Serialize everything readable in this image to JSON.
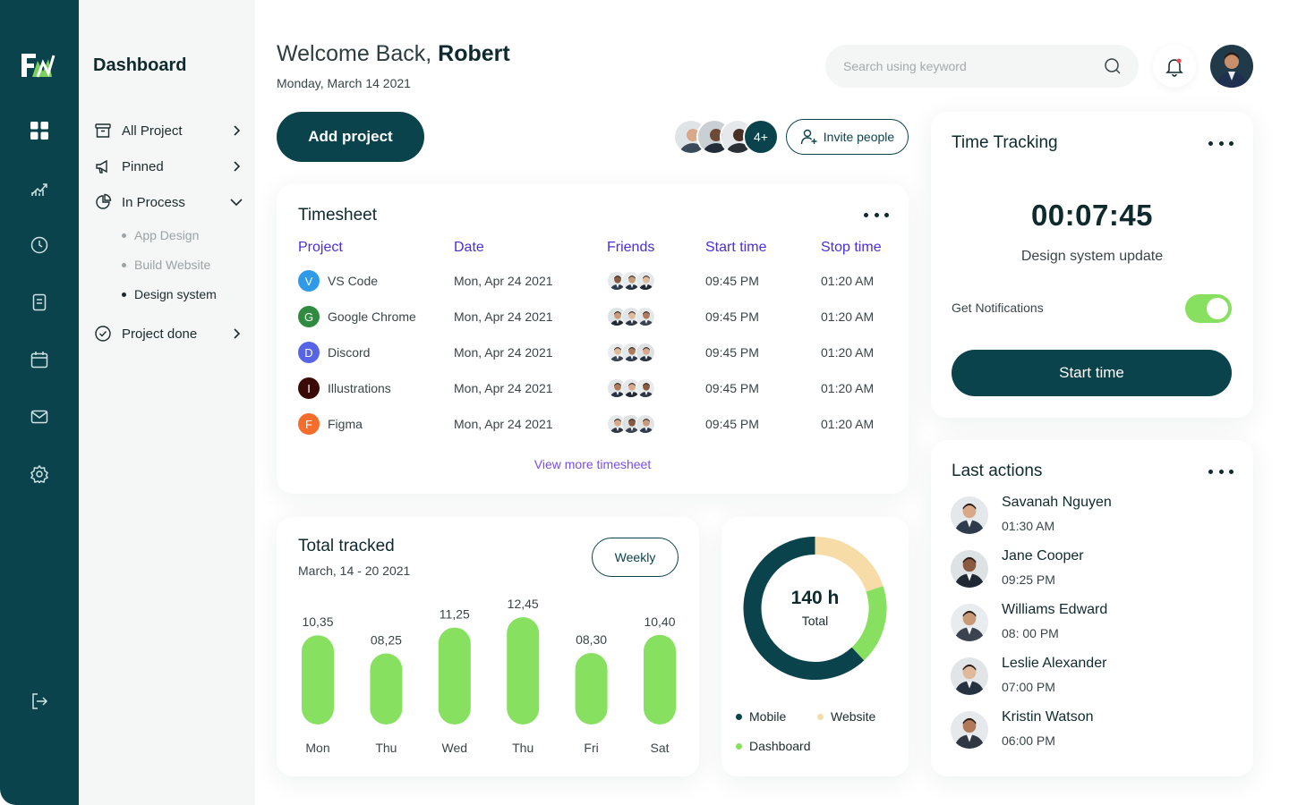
{
  "sidebar": {
    "title": "Dashboard",
    "menu": [
      {
        "label": "All Project"
      },
      {
        "label": "Pinned"
      },
      {
        "label": "In Process"
      },
      {
        "label": "Project done"
      }
    ],
    "sub_items": [
      {
        "label": "App Design"
      },
      {
        "label": "Build Website"
      },
      {
        "label": "Design system"
      }
    ]
  },
  "header": {
    "greeting": "Welcome Back,",
    "user_name": "Robert",
    "date": "Monday, March 14 2021",
    "search_placeholder": "Search using keyword"
  },
  "actions": {
    "add_project": "Add project",
    "team_more": "4+",
    "invite": "Invite people"
  },
  "timesheet": {
    "title": "Timesheet",
    "columns": [
      "Project",
      "Date",
      "Friends",
      "Start time",
      "Stop time"
    ],
    "rows": [
      {
        "letter": "V",
        "color": "#2f9be8",
        "project": "VS Code",
        "date": "Mon, Apr 24 2021",
        "start": "09:45 PM",
        "stop": "01:20 AM"
      },
      {
        "letter": "G",
        "color": "#2e8b3f",
        "project": "Google Chrome",
        "date": "Mon, Apr 24 2021",
        "start": "09:45 PM",
        "stop": "01:20 AM"
      },
      {
        "letter": "D",
        "color": "#5864e6",
        "project": "Discord",
        "date": "Mon, Apr 24 2021",
        "start": "09:45 PM",
        "stop": "01:20 AM"
      },
      {
        "letter": "I",
        "color": "#3a0a06",
        "project": "Illustrations",
        "date": "Mon, Apr 24 2021",
        "start": "09:45 PM",
        "stop": "01:20 AM"
      },
      {
        "letter": "F",
        "color": "#f56d2b",
        "project": "Figma",
        "date": "Mon, Apr 24 2021",
        "start": "09:45 PM",
        "stop": "01:20 AM"
      }
    ],
    "view_more": "View more timesheet"
  },
  "total_tracked": {
    "title": "Total tracked",
    "range": "March, 14 - 20 2021",
    "period": "Weekly",
    "chart_data": {
      "type": "bar",
      "categories": [
        "Mon",
        "Thu",
        "Wed",
        "Thu",
        "Fri",
        "Sat"
      ],
      "values": [
        10.35,
        8.25,
        11.25,
        12.45,
        8.3,
        10.4
      ],
      "labels": [
        "10,35",
        "08,25",
        "11,25",
        "12,45",
        "08,30",
        "10,40"
      ],
      "bar_color": "#88e060",
      "grid": false
    }
  },
  "donut": {
    "value": "140 h",
    "label": "Total",
    "chart_data": {
      "type": "pie",
      "categories": [
        "Mobile",
        "Website",
        "Dashboard"
      ],
      "values": [
        62,
        20,
        18
      ],
      "colors": [
        "#0a434c",
        "#f7dca8",
        "#88e060"
      ]
    },
    "legend": [
      {
        "label": "Mobile",
        "color": "#0a434c"
      },
      {
        "label": "Website",
        "color": "#f7dca8"
      },
      {
        "label": "Dashboard",
        "color": "#88e060"
      }
    ]
  },
  "time_tracking": {
    "title": "Time Tracking",
    "clock": "00:07:45",
    "task": "Design system update",
    "notifications_label": "Get Notifications",
    "notifications_on": true,
    "start_label": "Start time"
  },
  "last_actions": {
    "title": "Last actions",
    "items": [
      {
        "name": "Savanah Nguyen",
        "time": "01:30 AM"
      },
      {
        "name": "Jane Cooper",
        "time": "09:25 PM"
      },
      {
        "name": "Williams Edward",
        "time": "08: 00 PM"
      },
      {
        "name": "Leslie Alexander",
        "time": "07:00 PM"
      },
      {
        "name": "Kristin Watson",
        "time": "06:00 PM"
      }
    ]
  },
  "colors": {
    "brand": "#0a434c",
    "accent_green": "#88e060",
    "accent_purple": "#4b2fd4"
  }
}
